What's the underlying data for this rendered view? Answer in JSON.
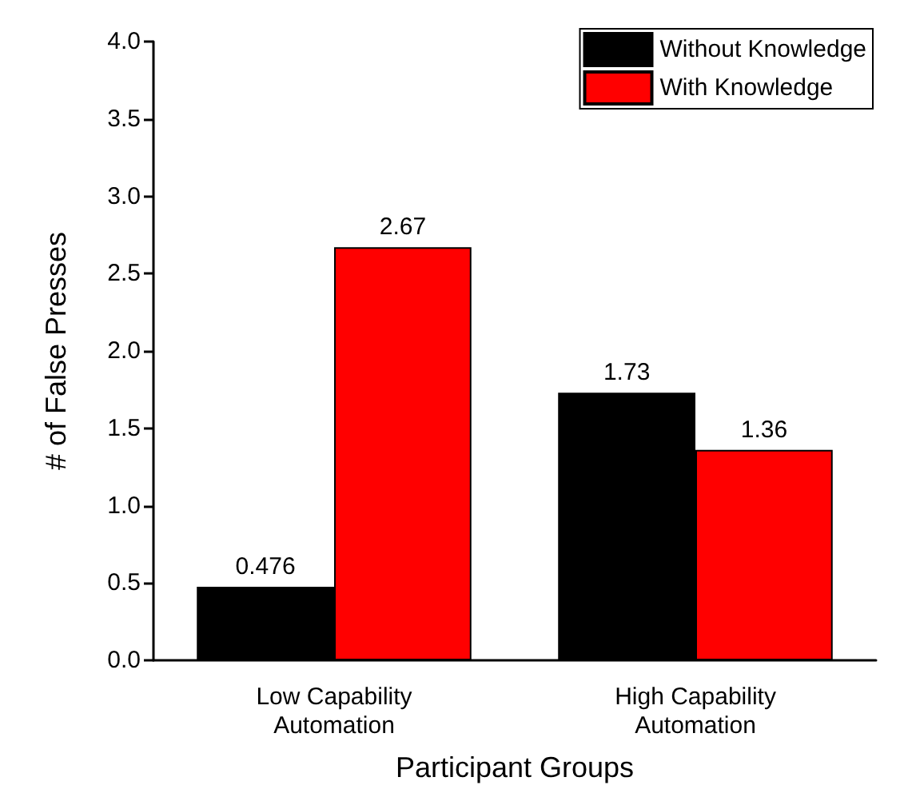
{
  "chart_data": {
    "type": "bar",
    "xlabel": "Participant Groups",
    "ylabel": "# of False Presses",
    "categories": [
      "Low Capability\nAutomation",
      "High Capability\nAutomation"
    ],
    "series": [
      {
        "name": "Without Knowledge",
        "color": "#000000",
        "values": [
          0.476,
          1.73
        ]
      },
      {
        "name": "With Knowledge",
        "color": "#ff0000",
        "values": [
          2.67,
          1.36
        ]
      }
    ],
    "ylim": [
      0,
      4
    ],
    "yticks": [
      {
        "value": 0,
        "label": "0.0"
      },
      {
        "value": 0.5,
        "label": "0.5"
      },
      {
        "value": 1,
        "label": "1.0"
      },
      {
        "value": 1.5,
        "label": "1.5"
      },
      {
        "value": 2,
        "label": "2.0"
      },
      {
        "value": 2.5,
        "label": "2.5"
      },
      {
        "value": 3,
        "label": "3.0"
      },
      {
        "value": 3.5,
        "label": "3.5"
      },
      {
        "value": 4,
        "label": "4.0"
      }
    ],
    "data_labels": true,
    "legend": "top right",
    "grid": false
  }
}
